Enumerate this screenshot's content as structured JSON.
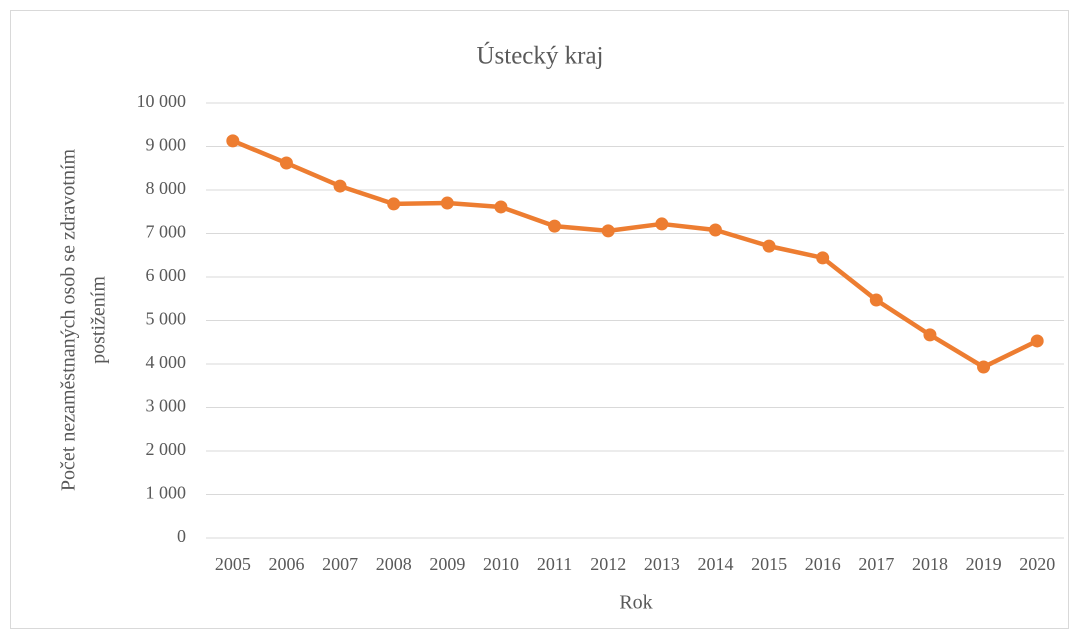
{
  "chart_data": {
    "type": "line",
    "title": "Ústecký kraj",
    "x_label": "Rok",
    "y_label": [
      "Počet nezaměstnaných osob se zdravotním",
      "postižením"
    ],
    "categories": [
      "2005",
      "2006",
      "2007",
      "2008",
      "2009",
      "2010",
      "2011",
      "2012",
      "2013",
      "2014",
      "2015",
      "2016",
      "2017",
      "2018",
      "2019",
      "2020"
    ],
    "series": [
      {
        "color": "#ed7d31",
        "values": [
          9130,
          8620,
          8090,
          7680,
          7700,
          7610,
          7170,
          7060,
          7220,
          7080,
          6710,
          6440,
          5470,
          4670,
          3930,
          4530
        ]
      }
    ],
    "ylim": [
      0,
      10000
    ],
    "yticks": [
      0,
      {
        "value": 1000,
        "label": "1 000"
      },
      {
        "value": 2000,
        "label": "2 000"
      },
      {
        "value": 3000,
        "label": "3 000"
      },
      {
        "value": 4000,
        "label": "4 000"
      },
      {
        "value": 5000,
        "label": "5 000"
      },
      {
        "value": 6000,
        "label": "6 000"
      },
      {
        "value": 7000,
        "label": "7 000"
      },
      {
        "value": 8000,
        "label": "8 000"
      },
      {
        "value": 9000,
        "label": "9 000"
      },
      {
        "value": 10000,
        "label": "10 000"
      }
    ],
    "grid": true
  }
}
